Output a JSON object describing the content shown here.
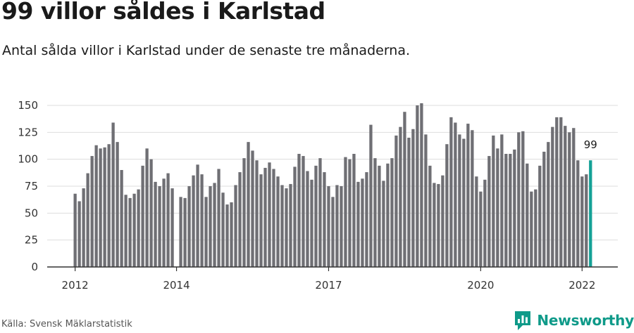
{
  "header": {
    "title": "99 villor såldes i Karlstad",
    "subtitle": "Antal sålda villor i Karlstad under de senaste tre månaderna."
  },
  "footer": {
    "source": "Källa: Svensk Mäklarstatistik",
    "brand": "Newsworthy",
    "brand_icon": "newsworthy-logo-icon"
  },
  "colors": {
    "bar": "#6f6f74",
    "highlight": "#14a196",
    "grid": "#dddddd",
    "axis": "#333333",
    "brand": "#0f9a89"
  },
  "chart_data": {
    "type": "bar",
    "title": "99 villor såldes i Karlstad",
    "xlabel": "",
    "ylabel": "",
    "ylim": [
      0,
      160
    ],
    "yticks": [
      0,
      25,
      50,
      75,
      100,
      125,
      150
    ],
    "grid": true,
    "x_tick_labels": [
      {
        "label": "2012",
        "index": 0
      },
      {
        "label": "2014",
        "index": 24
      },
      {
        "label": "2017",
        "index": 60
      },
      {
        "label": "2020",
        "index": 96
      },
      {
        "label": "2022",
        "index": 120
      }
    ],
    "highlight_label": "99",
    "highlight_index": 122,
    "values": [
      68,
      61,
      73,
      87,
      103,
      113,
      110,
      111,
      114,
      134,
      116,
      90,
      67,
      64,
      68,
      72,
      94,
      110,
      100,
      79,
      75,
      82,
      87,
      73,
      null,
      65,
      64,
      75,
      85,
      95,
      86,
      65,
      75,
      78,
      91,
      69,
      58,
      60,
      76,
      88,
      101,
      116,
      108,
      99,
      86,
      92,
      97,
      91,
      84,
      76,
      73,
      77,
      93,
      105,
      103,
      89,
      81,
      94,
      101,
      88,
      75,
      65,
      76,
      75,
      102,
      100,
      105,
      79,
      82,
      88,
      132,
      101,
      94,
      80,
      96,
      101,
      122,
      130,
      144,
      120,
      128,
      150,
      152,
      123,
      94,
      78,
      77,
      85,
      114,
      139,
      134,
      123,
      119,
      133,
      127,
      84,
      70,
      81,
      103,
      122,
      110,
      123,
      105,
      105,
      109,
      125,
      126,
      96,
      70,
      72,
      94,
      107,
      116,
      130,
      139,
      139,
      131,
      125,
      129,
      99,
      84,
      86,
      99
    ]
  }
}
